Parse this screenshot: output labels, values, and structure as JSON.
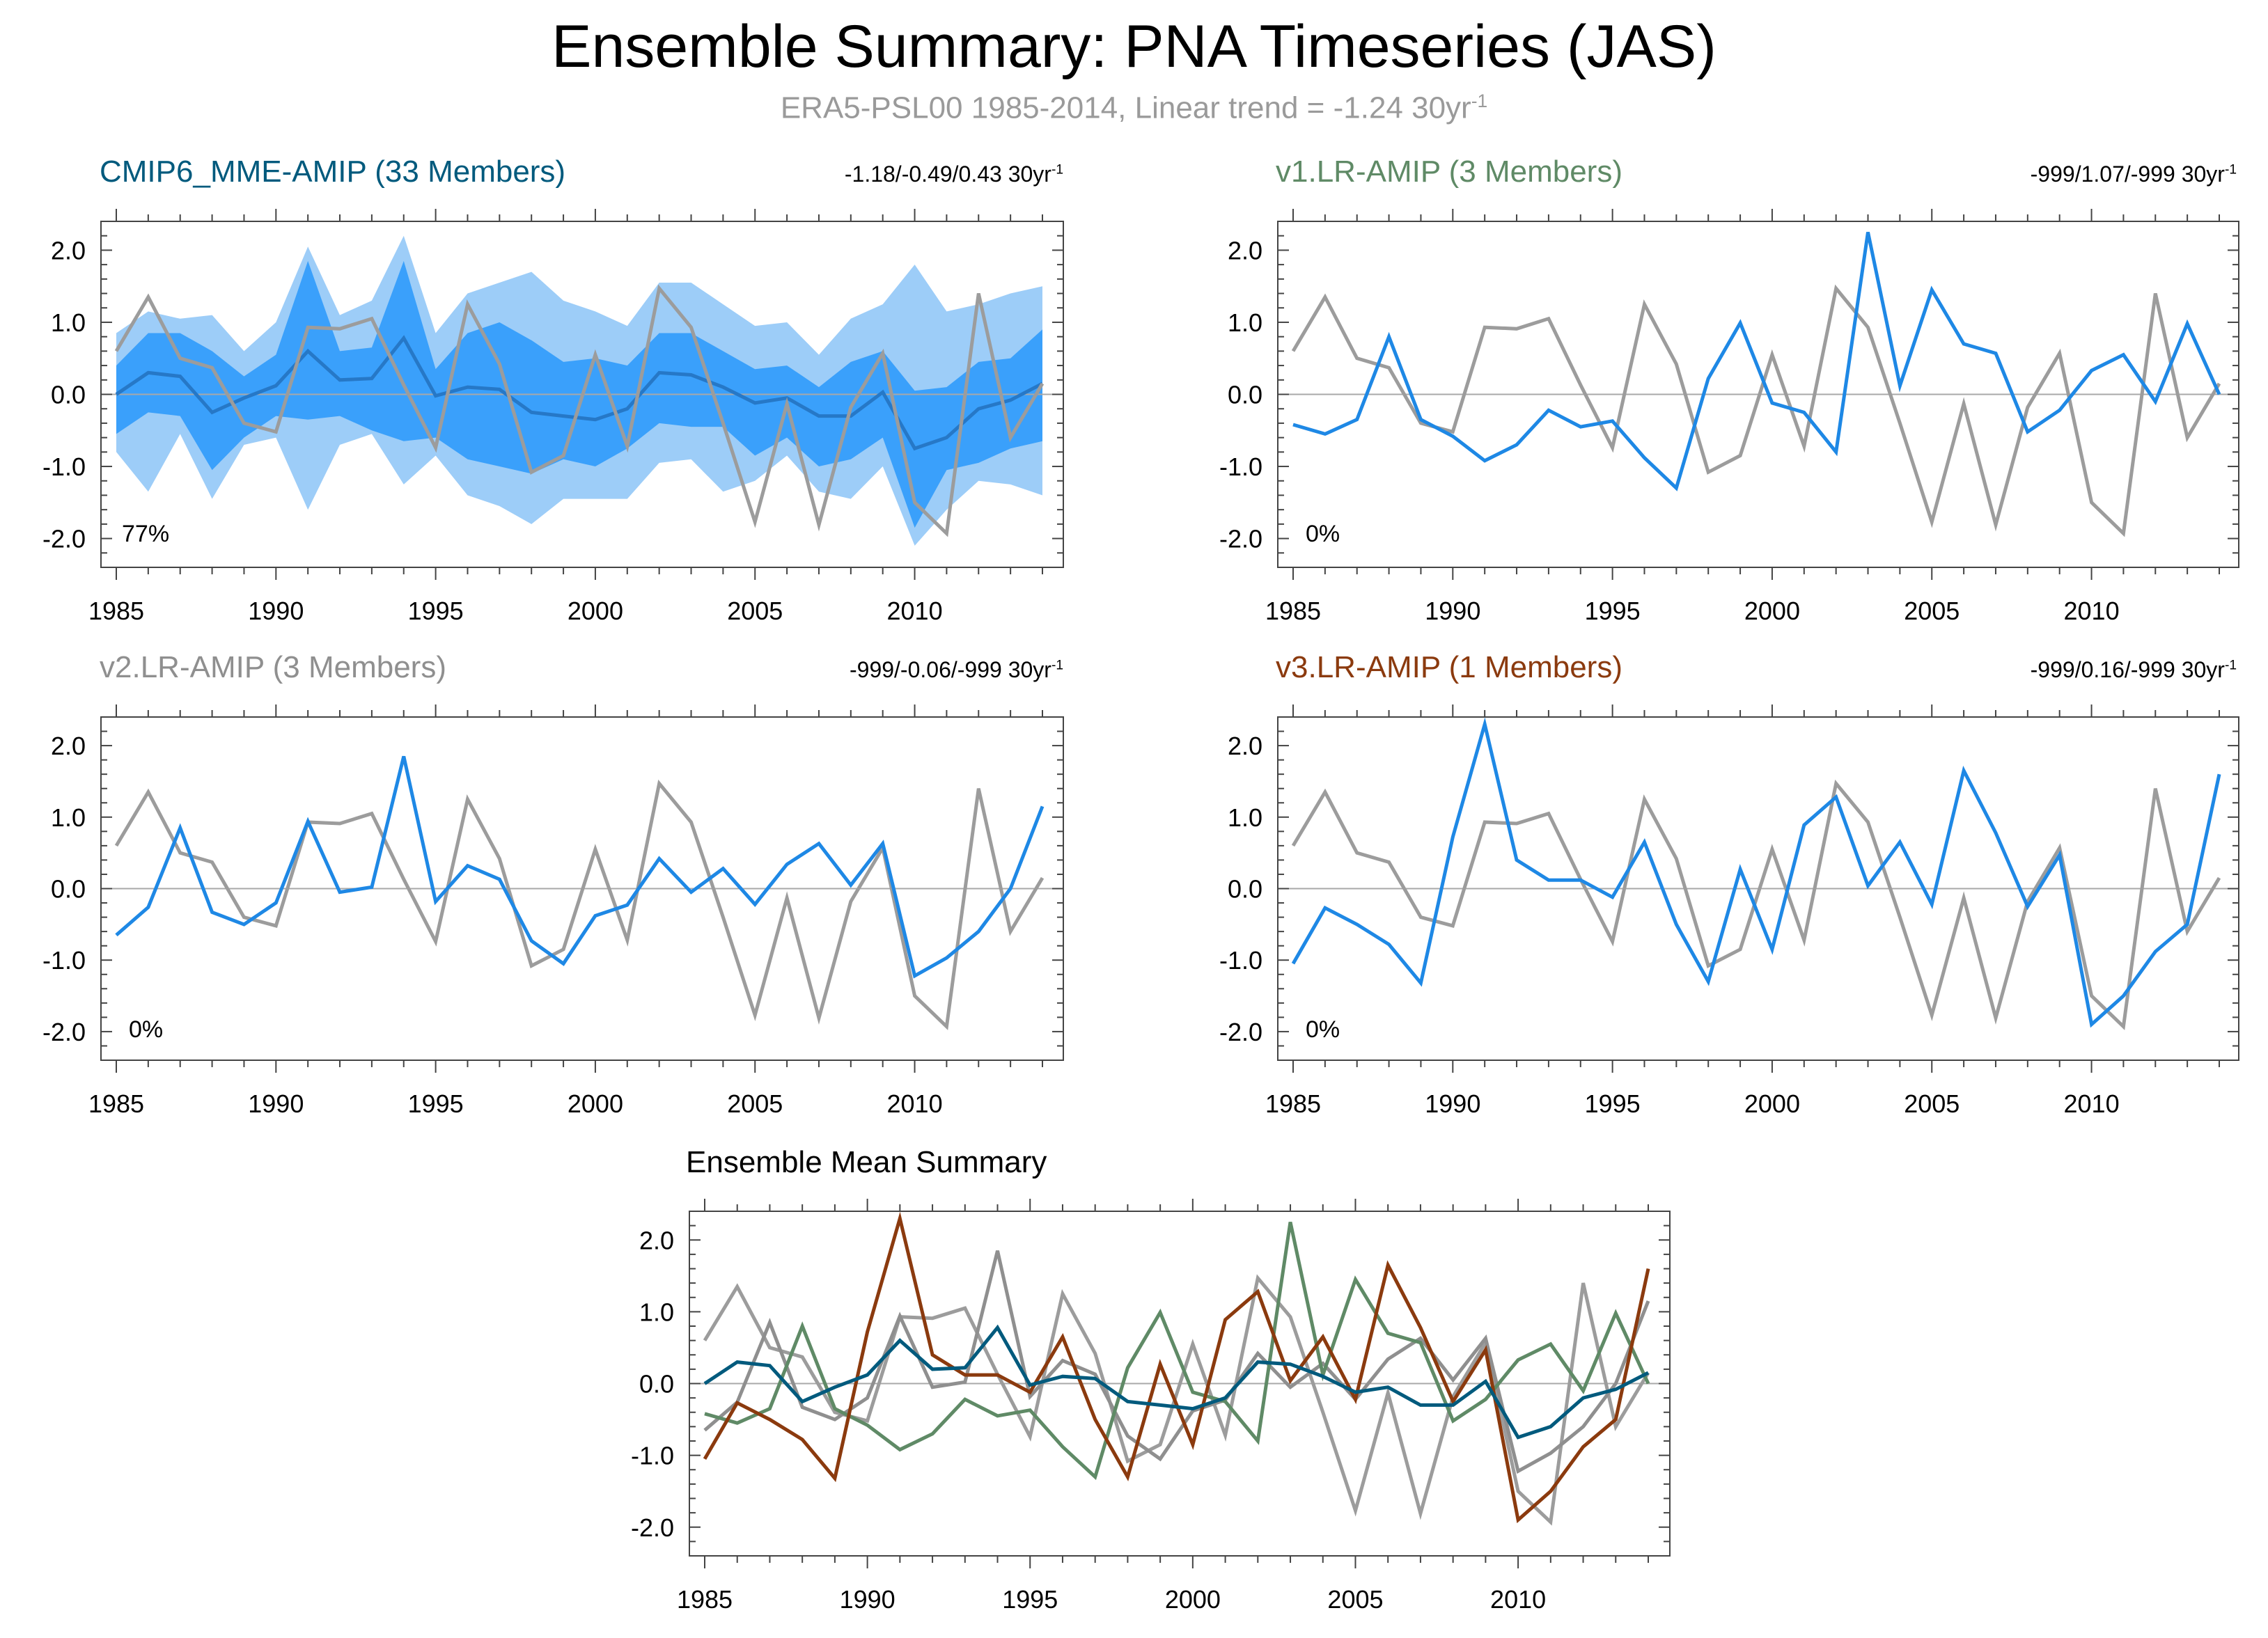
{
  "title": "Ensemble Summary: PNA Timeseries (JAS)",
  "subtitle_prefix": "ERA5-PSL00 1985-2014, Linear trend = -1.24 30yr",
  "subtitle_sup": "-1",
  "colors": {
    "obs": "#9c9c9c",
    "member": "#1e88e5",
    "spread_outer": "#9dcdf8",
    "spread_inner": "#3aa0fb",
    "mme_mean": "#2678c7",
    "cmip6": "#005a7d",
    "v1": "#5f8a66",
    "v2": "#8f8f8f",
    "v3": "#8b3a0e",
    "zero_line": "#a8a8a8"
  },
  "panels": [
    {
      "id": "cmip6",
      "title": "CMIP6_MME-AMIP (33 Members)",
      "trend": "-1.18/-0.49/0.43 30yr",
      "trend_sup": "-1",
      "pct": "77%"
    },
    {
      "id": "v1",
      "title": "v1.LR-AMIP (3 Members)",
      "trend": "-999/1.07/-999 30yr",
      "trend_sup": "-1",
      "pct": "0%"
    },
    {
      "id": "v2",
      "title": "v2.LR-AMIP (3 Members)",
      "trend": "-999/-0.06/-999 30yr",
      "trend_sup": "-1",
      "pct": "0%"
    },
    {
      "id": "v3",
      "title": "v3.LR-AMIP (1 Members)",
      "trend": "-999/0.16/-999 30yr",
      "trend_sup": "-1",
      "pct": "0%"
    },
    {
      "id": "summary",
      "title": "Ensemble Mean Summary"
    }
  ],
  "chart_data": {
    "type": "line",
    "x": [
      1985,
      1986,
      1987,
      1988,
      1989,
      1990,
      1991,
      1992,
      1993,
      1994,
      1995,
      1996,
      1997,
      1998,
      1999,
      2000,
      2001,
      2002,
      2003,
      2004,
      2005,
      2006,
      2007,
      2008,
      2009,
      2010,
      2011,
      2012,
      2013,
      2014
    ],
    "xticks": [
      1985,
      1990,
      1995,
      2000,
      2005,
      2010
    ],
    "yticks": [
      "2.0",
      "1.0",
      "0.0",
      "-1.0",
      "-2.0"
    ],
    "ylim": [
      -2.4,
      2.4
    ],
    "observation": {
      "name": "ERA5-PSL00",
      "values": [
        0.6,
        1.35,
        0.5,
        0.37,
        -0.4,
        -0.52,
        0.93,
        0.91,
        1.05,
        0.13,
        -0.74,
        1.25,
        0.42,
        -1.08,
        -0.85,
        0.55,
        -0.72,
        1.47,
        0.93,
        -0.4,
        -1.77,
        -0.13,
        -1.81,
        -0.18,
        0.57,
        -1.5,
        -1.93,
        1.4,
        -0.6,
        0.15
      ]
    },
    "cmip6_ensemble": {
      "mean": [
        0.0,
        0.3,
        0.25,
        -0.25,
        -0.05,
        0.12,
        0.6,
        0.2,
        0.22,
        0.78,
        -0.02,
        0.1,
        0.07,
        -0.25,
        -0.3,
        -0.35,
        -0.2,
        0.3,
        0.27,
        0.1,
        -0.12,
        -0.05,
        -0.3,
        -0.3,
        0.03,
        -0.75,
        -0.6,
        -0.2,
        -0.08,
        0.15
      ],
      "p25": [
        -0.55,
        -0.25,
        -0.3,
        -1.05,
        -0.6,
        -0.3,
        -0.35,
        -0.3,
        -0.5,
        -0.65,
        -0.6,
        -0.9,
        -1.0,
        -1.1,
        -0.9,
        -1.0,
        -0.75,
        -0.4,
        -0.45,
        -0.45,
        -0.85,
        -0.6,
        -1.0,
        -0.9,
        -0.6,
        -1.85,
        -1.05,
        -0.95,
        -0.75,
        -0.65
      ],
      "p75": [
        0.4,
        0.85,
        0.85,
        0.6,
        0.25,
        0.55,
        1.85,
        0.6,
        0.65,
        1.85,
        0.35,
        0.85,
        1.0,
        0.75,
        0.45,
        0.5,
        0.4,
        0.85,
        0.85,
        0.6,
        0.35,
        0.4,
        0.1,
        0.45,
        0.6,
        0.05,
        0.1,
        0.45,
        0.5,
        0.9
      ],
      "min": [
        -0.8,
        -1.35,
        -0.55,
        -1.45,
        -0.7,
        -0.6,
        -1.6,
        -0.7,
        -0.55,
        -1.25,
        -0.85,
        -1.4,
        -1.55,
        -1.8,
        -1.45,
        -1.45,
        -1.45,
        -0.95,
        -0.9,
        -1.35,
        -1.2,
        -0.85,
        -1.35,
        -1.45,
        -1.0,
        -2.1,
        -1.6,
        -1.2,
        -1.25,
        -1.4
      ],
      "max": [
        0.85,
        1.15,
        1.05,
        1.1,
        0.6,
        1.0,
        2.05,
        1.1,
        1.3,
        2.2,
        0.85,
        1.4,
        1.55,
        1.7,
        1.3,
        1.15,
        0.95,
        1.55,
        1.55,
        1.25,
        0.95,
        1.0,
        0.55,
        1.05,
        1.25,
        1.8,
        1.15,
        1.25,
        1.4,
        1.5
      ]
    },
    "series": [
      {
        "name": "CMIP6_MME-AMIP",
        "values": [
          0.0,
          0.3,
          0.25,
          -0.25,
          -0.05,
          0.12,
          0.6,
          0.2,
          0.22,
          0.78,
          -0.02,
          0.1,
          0.07,
          -0.25,
          -0.3,
          -0.35,
          -0.2,
          0.3,
          0.27,
          0.1,
          -0.12,
          -0.05,
          -0.3,
          -0.3,
          0.03,
          -0.75,
          -0.6,
          -0.2,
          -0.08,
          0.15
        ]
      },
      {
        "name": "v1.LR-AMIP",
        "values": [
          -0.42,
          -0.55,
          -0.35,
          0.8,
          -0.35,
          -0.58,
          -0.92,
          -0.7,
          -0.22,
          -0.45,
          -0.37,
          -0.88,
          -1.3,
          0.22,
          0.99,
          -0.12,
          -0.25,
          -0.8,
          2.25,
          0.12,
          1.45,
          0.7,
          0.57,
          -0.52,
          -0.22,
          0.33,
          0.55,
          -0.1,
          0.98,
          0.0
        ]
      },
      {
        "name": "v2.LR-AMIP",
        "values": [
          -0.65,
          -0.26,
          0.85,
          -0.33,
          -0.5,
          -0.2,
          0.94,
          -0.05,
          0.02,
          1.85,
          -0.18,
          0.32,
          0.13,
          -0.73,
          -1.05,
          -0.38,
          -0.23,
          0.42,
          -0.05,
          0.28,
          -0.22,
          0.34,
          0.63,
          0.05,
          0.63,
          -1.22,
          -0.97,
          -0.6,
          0.0,
          1.15
        ]
      },
      {
        "name": "v3.LR-AMIP",
        "values": [
          -1.05,
          -0.27,
          -0.5,
          -0.78,
          -1.32,
          0.72,
          2.3,
          0.4,
          0.12,
          0.12,
          -0.12,
          0.65,
          -0.5,
          -1.3,
          0.27,
          -0.85,
          0.89,
          1.28,
          0.04,
          0.65,
          -0.22,
          1.65,
          0.78,
          -0.25,
          0.47,
          -1.9,
          -1.5,
          -0.88,
          -0.5,
          1.6
        ]
      }
    ]
  }
}
